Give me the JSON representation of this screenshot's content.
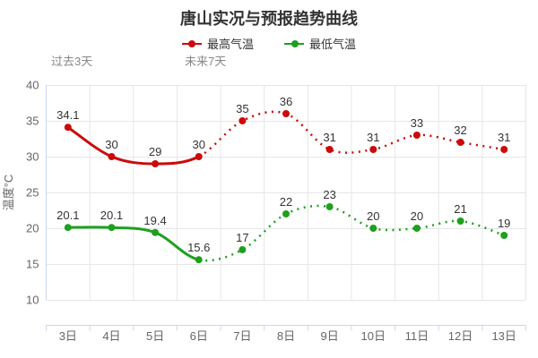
{
  "title": "唐山实况与预报趋势曲线",
  "annotations": {
    "past": "过去3天",
    "future": "未来7天"
  },
  "chart_data": {
    "type": "line",
    "title": "唐山实况与预报趋势曲线",
    "categories": [
      "3日",
      "4日",
      "5日",
      "6日",
      "7日",
      "8日",
      "9日",
      "10日",
      "11日",
      "12日",
      "13日"
    ],
    "series": [
      {
        "name": "最高气温",
        "color": "#cc0a0a",
        "values": [
          34.1,
          30,
          29,
          30,
          35,
          36,
          31,
          31,
          33,
          32,
          31
        ]
      },
      {
        "name": "最低气温",
        "color": "#1ea01e",
        "values": [
          20.1,
          20.1,
          19.4,
          15.6,
          17,
          22,
          23,
          20,
          20,
          21,
          19
        ]
      }
    ],
    "solid_until_index": 3,
    "xlabel": "",
    "ylabel": "温度°C",
    "ylim": [
      10,
      40
    ],
    "yticks": [
      10,
      15,
      20,
      25,
      30,
      35,
      40
    ],
    "grid": true,
    "legend_position": "top",
    "annotations": [
      {
        "text": "过去3天",
        "anchor": "above-plot-left"
      },
      {
        "text": "未来7天",
        "anchor": "above-plot-day6"
      }
    ],
    "colors": {
      "grid_line": "#e6e6e6",
      "axis_line": "#ccd6eb",
      "tick_label": "#666666",
      "axis_title": "#666666",
      "data_label": "#333333",
      "annotation_text": "#888888",
      "title_text": "#333333",
      "background": "#ffffff"
    }
  }
}
